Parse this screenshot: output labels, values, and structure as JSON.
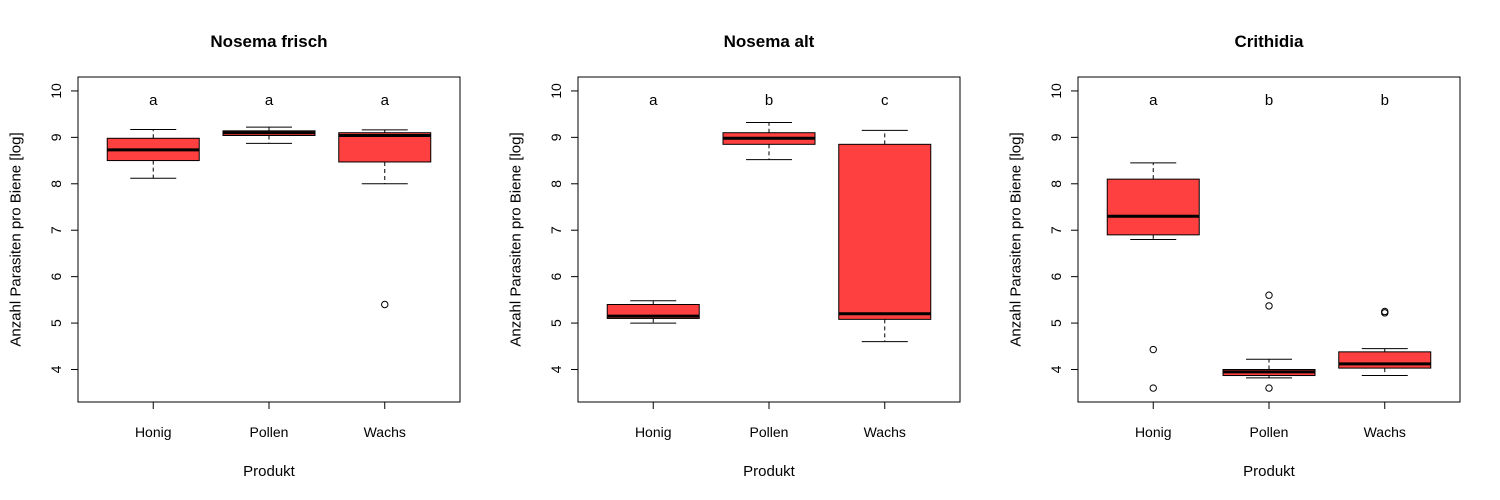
{
  "chart_data": [
    {
      "type": "box",
      "title": "Nosema frisch",
      "xlabel": "Produkt",
      "ylabel": "Anzahl Parasiten pro Biene [log]",
      "categories": [
        "Honig",
        "Pollen",
        "Wachs"
      ],
      "ylim": [
        3.3,
        10.3
      ],
      "yticks": [
        "4",
        "5",
        "6",
        "7",
        "8",
        "9",
        "10"
      ],
      "grid": false,
      "box_color": "#FF4040",
      "groups": [
        {
          "label": "Honig",
          "letter": "a",
          "min": 8.12,
          "q1": 8.5,
          "median": 8.73,
          "q3": 8.98,
          "max": 9.17,
          "outliers": []
        },
        {
          "label": "Pollen",
          "letter": "a",
          "min": 8.87,
          "q1": 9.04,
          "median": 9.1,
          "q3": 9.14,
          "max": 9.22,
          "outliers": []
        },
        {
          "label": "Wachs",
          "letter": "a",
          "min": 8.0,
          "q1": 8.47,
          "median": 9.04,
          "q3": 9.1,
          "max": 9.16,
          "outliers": [
            5.4
          ]
        }
      ]
    },
    {
      "type": "box",
      "title": "Nosema alt",
      "xlabel": "Produkt",
      "ylabel": "Anzahl Parasiten pro Biene [log]",
      "categories": [
        "Honig",
        "Pollen",
        "Wachs"
      ],
      "ylim": [
        3.3,
        10.3
      ],
      "yticks": [
        "4",
        "5",
        "6",
        "7",
        "8",
        "9",
        "10"
      ],
      "grid": false,
      "box_color": "#FF4040",
      "groups": [
        {
          "label": "Honig",
          "letter": "a",
          "min": 5.0,
          "q1": 5.1,
          "median": 5.15,
          "q3": 5.4,
          "max": 5.48,
          "outliers": []
        },
        {
          "label": "Pollen",
          "letter": "b",
          "min": 8.52,
          "q1": 8.85,
          "median": 8.98,
          "q3": 9.1,
          "max": 9.32,
          "outliers": []
        },
        {
          "label": "Wachs",
          "letter": "c",
          "min": 4.6,
          "q1": 5.08,
          "median": 5.2,
          "q3": 8.85,
          "max": 9.15,
          "outliers": []
        }
      ]
    },
    {
      "type": "box",
      "title": "Crithidia",
      "xlabel": "Produkt",
      "ylabel": "Anzahl Parasiten pro Biene [log]",
      "categories": [
        "Honig",
        "Pollen",
        "Wachs"
      ],
      "ylim": [
        3.3,
        10.3
      ],
      "yticks": [
        "4",
        "5",
        "6",
        "7",
        "8",
        "9",
        "10"
      ],
      "grid": false,
      "box_color": "#FF4040",
      "groups": [
        {
          "label": "Honig",
          "letter": "a",
          "min": 6.8,
          "q1": 6.9,
          "median": 7.3,
          "q3": 8.1,
          "max": 8.45,
          "outliers": [
            4.43,
            3.6
          ]
        },
        {
          "label": "Pollen",
          "letter": "b",
          "min": 3.82,
          "q1": 3.87,
          "median": 3.95,
          "q3": 4.0,
          "max": 4.22,
          "outliers": [
            5.6,
            5.37,
            3.6
          ]
        },
        {
          "label": "Wachs",
          "letter": "b",
          "min": 3.87,
          "q1": 4.03,
          "median": 4.12,
          "q3": 4.38,
          "max": 4.45,
          "outliers": [
            5.25,
            5.22
          ]
        }
      ]
    }
  ]
}
